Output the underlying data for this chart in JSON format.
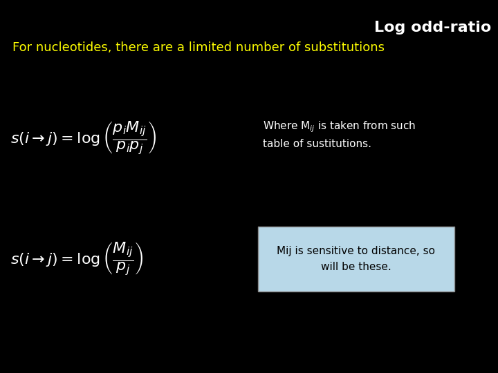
{
  "background_color": "#000000",
  "title": "Log odd-ratio",
  "title_color": "#ffffff",
  "title_fontsize": 16,
  "title_fontweight": "bold",
  "subtitle": "For nucleotides, there are a limited number of substitutions",
  "subtitle_color": "#ffff00",
  "subtitle_fontsize": 13,
  "formula_color": "#ffffff",
  "formula_fontsize": 16,
  "annotation1_line1": "Where M",
  "annotation1_line2": " is taken from such",
  "annotation1_line3": "table of sustitutions.",
  "annotation1_color": "#ffffff",
  "annotation1_fontsize": 11,
  "annotation2": "Mij is sensitive to distance, so\nwill be these.",
  "annotation2_color": "#000000",
  "annotation2_fontsize": 11,
  "annotation2_box_color": "#b8d8e8",
  "annotation2_box_edgecolor": "#888888"
}
